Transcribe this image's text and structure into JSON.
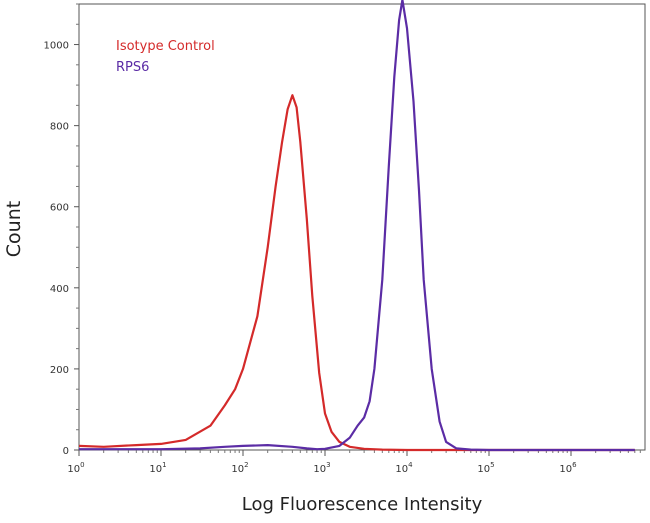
{
  "chart_data": {
    "type": "line",
    "xlabel": "Log Fluorescence Intensity",
    "ylabel": "Count",
    "xscale": "log",
    "xlim": [
      1,
      6000000
    ],
    "ylim": [
      0,
      1100
    ],
    "grid": false,
    "legend_position": "top-left",
    "y_ticks": [
      {
        "value": 0,
        "label": "0"
      },
      {
        "value": 200,
        "label": "200"
      },
      {
        "value": 400,
        "label": "400"
      },
      {
        "value": 600,
        "label": "600"
      },
      {
        "value": 800,
        "label": "800"
      },
      {
        "value": 1000,
        "label": "1000"
      }
    ],
    "x_ticks": [
      {
        "value": 1,
        "base": "10",
        "exp": "0"
      },
      {
        "value": 10,
        "base": "10",
        "exp": "1"
      },
      {
        "value": 100,
        "base": "10",
        "exp": "2"
      },
      {
        "value": 1000,
        "base": "10",
        "exp": "3"
      },
      {
        "value": 10000,
        "base": "10",
        "exp": "4"
      },
      {
        "value": 100000,
        "base": "10",
        "exp": "5"
      },
      {
        "value": 1000000,
        "base": "10",
        "exp": "6"
      }
    ],
    "series": [
      {
        "name": "Isotype Control",
        "color": "#d42a2a",
        "x": [
          1,
          2,
          5,
          10,
          20,
          40,
          60,
          80,
          100,
          150,
          200,
          250,
          300,
          350,
          400,
          450,
          500,
          600,
          700,
          850,
          1000,
          1200,
          1500,
          2000,
          3000,
          5000,
          10000,
          100000,
          6000000
        ],
        "y": [
          10,
          8,
          12,
          15,
          25,
          60,
          110,
          150,
          200,
          330,
          500,
          650,
          760,
          840,
          875,
          845,
          760,
          570,
          380,
          190,
          90,
          45,
          20,
          8,
          3,
          1,
          0,
          0,
          0
        ]
      },
      {
        "name": "RPS6",
        "color": "#5b2ca5",
        "x": [
          1,
          10,
          30,
          60,
          100,
          200,
          400,
          600,
          800,
          1000,
          1500,
          2000,
          2500,
          3000,
          3500,
          4000,
          5000,
          6000,
          7000,
          8000,
          8800,
          10000,
          12000,
          14000,
          16000,
          20000,
          25000,
          30000,
          40000,
          60000,
          100000,
          6000000
        ],
        "y": [
          2,
          2,
          4,
          8,
          10,
          12,
          8,
          4,
          2,
          3,
          10,
          30,
          60,
          80,
          120,
          200,
          420,
          700,
          920,
          1060,
          1110,
          1040,
          860,
          640,
          420,
          200,
          70,
          20,
          4,
          1,
          0,
          0
        ]
      }
    ]
  }
}
